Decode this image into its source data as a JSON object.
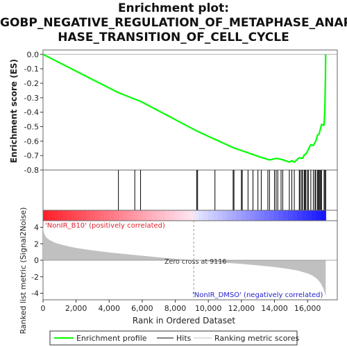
{
  "title": {
    "line1": "Enrichment plot:",
    "line2": "GOBP_NEGATIVE_REGULATION_OF_METAPHASE_ANAP",
    "line3": "HASE_TRANSITION_OF_CELL_CYCLE"
  },
  "chart_data": {
    "type": "line",
    "es_panel": {
      "ylabel": "Enrichment score (ES)",
      "ylim": [
        -0.8,
        0.03
      ],
      "yticks": [
        "0.0",
        "-0.1",
        "-0.2",
        "-0.3",
        "-0.4",
        "-0.5",
        "-0.6",
        "-0.7",
        "-0.8"
      ],
      "ytick_values": [
        0.0,
        -0.1,
        -0.2,
        -0.3,
        -0.4,
        -0.5,
        -0.6,
        -0.7,
        -0.8
      ],
      "series": [
        {
          "name": "Enrichment profile",
          "color": "#00ff00",
          "x": [
            0,
            4560,
            5550,
            5900,
            9300,
            11500,
            12000,
            13000,
            13700,
            14100,
            14400,
            14900,
            15050,
            15200,
            15500,
            15700,
            15800,
            15900,
            16000,
            16100,
            16200,
            16350,
            16500,
            16600,
            16700,
            16850,
            17000,
            17050,
            17080,
            17100
          ],
          "y": [
            0.0,
            -0.265,
            -0.31,
            -0.325,
            -0.53,
            -0.645,
            -0.665,
            -0.705,
            -0.73,
            -0.72,
            -0.725,
            -0.745,
            -0.735,
            -0.745,
            -0.715,
            -0.72,
            -0.695,
            -0.69,
            -0.67,
            -0.645,
            -0.625,
            -0.63,
            -0.6,
            -0.56,
            -0.55,
            -0.485,
            -0.49,
            -0.38,
            -0.2,
            0.0
          ]
        }
      ]
    },
    "hits": {
      "name": "Hits",
      "color": "#000000",
      "x": [
        4560,
        5550,
        5900,
        9300,
        9350,
        10400,
        11500,
        11550,
        12000,
        12050,
        12400,
        12700,
        13000,
        13200,
        13600,
        13700,
        14000,
        14100,
        14200,
        14400,
        14500,
        14900,
        15050,
        15200,
        15500,
        15550,
        15650,
        15700,
        15800,
        15850,
        15900,
        16000,
        16050,
        16200,
        16350,
        16450,
        16500,
        16600,
        16650,
        16700,
        16750,
        16800,
        16850,
        17000,
        17050,
        17100
      ]
    },
    "metric_panel": {
      "ylabel": "Ranked list metric (Signal2Noise)",
      "ylim": [
        -4.8,
        4.8
      ],
      "yticks": [
        "4",
        "2",
        "0",
        "-2",
        "-4"
      ],
      "ytick_values": [
        4,
        2,
        0,
        -2,
        -4
      ],
      "positive_label": "'NonIR_B10' (positively correlated)",
      "negative_label": "'NonIR_DMSO' (negatively correlated)",
      "zero_cross_label": "Zero cross at 9116",
      "zero_cross": 9116,
      "series": [
        {
          "name": "Ranking metric scores",
          "color": "#c0c0c0",
          "x": [
            0,
            30,
            100,
            200,
            400,
            700,
            1000,
            1500,
            2000,
            3000,
            4000,
            5000,
            6000,
            7000,
            8000,
            9116,
            10000,
            11000,
            12000,
            13000,
            14000,
            15000,
            15500,
            16000,
            16300,
            16600,
            16800,
            16950,
            17050,
            17100
          ],
          "y": [
            4.3,
            3.6,
            3.1,
            2.75,
            2.45,
            2.15,
            1.95,
            1.7,
            1.5,
            1.2,
            0.95,
            0.75,
            0.55,
            0.35,
            0.18,
            0.0,
            -0.15,
            -0.3,
            -0.45,
            -0.62,
            -0.82,
            -1.1,
            -1.3,
            -1.6,
            -1.85,
            -2.3,
            -2.8,
            -3.4,
            -4.0,
            -4.5
          ]
        }
      ]
    },
    "xlabel": "Rank in Ordered Dataset",
    "xlim": [
      0,
      17800
    ],
    "xticks": [
      "0",
      "2,000",
      "4,000",
      "6,000",
      "8,000",
      "10,000",
      "12,000",
      "14,000",
      "16,000"
    ],
    "xtick_values": [
      0,
      2000,
      4000,
      6000,
      8000,
      10000,
      12000,
      14000,
      16000
    ],
    "ranked_list_length": 17100,
    "legend": {
      "placement": "bottom",
      "entries": [
        "Enrichment profile",
        "Hits",
        "Ranking metric scores"
      ]
    }
  }
}
